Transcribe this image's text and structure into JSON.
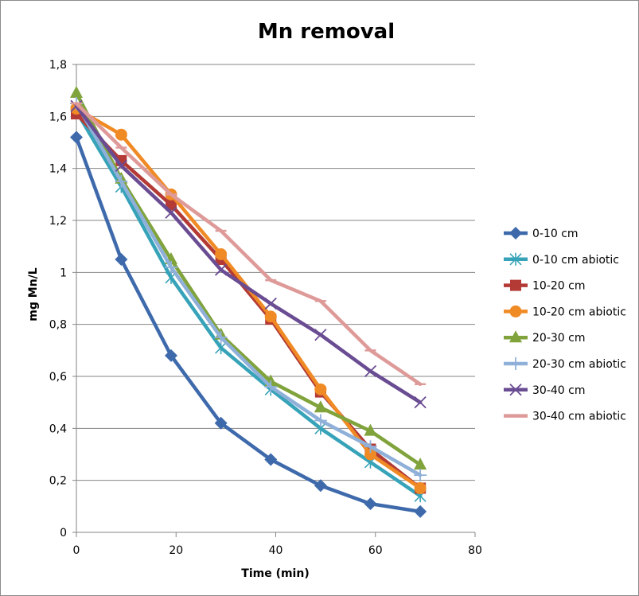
{
  "chart_data": {
    "type": "line",
    "title": "Mn removal",
    "xlabel": "Time (min)",
    "ylabel": "mg Mn/L",
    "xlim": [
      0,
      80
    ],
    "ylim": [
      0,
      1.8
    ],
    "x_ticks": [
      "0",
      "20",
      "40",
      "60",
      "80"
    ],
    "y_ticks": [
      "0",
      "0,2",
      "0,4",
      "0,6",
      "0,8",
      "1",
      "1,2",
      "1,4",
      "1,6",
      "1,8"
    ],
    "grid": "horizontal",
    "legend_position": "right",
    "x": [
      0,
      9,
      19,
      29,
      39,
      49,
      59,
      69
    ],
    "series": [
      {
        "name": "0-10 cm",
        "color": "#3e6aac",
        "marker": "diamond",
        "values": [
          1.52,
          1.05,
          0.68,
          0.42,
          0.28,
          0.18,
          0.11,
          0.08
        ]
      },
      {
        "name": "0-10 cm abiotic",
        "color": "#37a3b8",
        "marker": "asterisk",
        "values": [
          1.62,
          1.33,
          0.98,
          0.71,
          0.55,
          0.4,
          0.27,
          0.14
        ]
      },
      {
        "name": "10-20 cm",
        "color": "#b33a35",
        "marker": "square",
        "values": [
          1.61,
          1.43,
          1.26,
          1.05,
          0.82,
          0.54,
          0.32,
          0.17
        ]
      },
      {
        "name": "10-20 cm abiotic",
        "color": "#f08a25",
        "marker": "circle",
        "values": [
          1.63,
          1.53,
          1.3,
          1.07,
          0.83,
          0.55,
          0.3,
          0.17
        ]
      },
      {
        "name": "20-30 cm",
        "color": "#80a33c",
        "marker": "triangle",
        "values": [
          1.69,
          1.36,
          1.05,
          0.76,
          0.58,
          0.48,
          0.39,
          0.26
        ]
      },
      {
        "name": "20-30 cm abiotic",
        "color": "#8fb0d8",
        "marker": "plus",
        "values": [
          1.65,
          1.35,
          1.02,
          0.75,
          0.56,
          0.43,
          0.33,
          0.22
        ]
      },
      {
        "name": "30-40 cm",
        "color": "#6a4c93",
        "marker": "x",
        "values": [
          1.64,
          1.41,
          1.23,
          1.01,
          0.88,
          0.76,
          0.62,
          0.5
        ]
      },
      {
        "name": "30-40 cm abiotic",
        "color": "#de9a98",
        "marker": "dash",
        "values": [
          1.65,
          1.48,
          1.3,
          1.16,
          0.97,
          0.89,
          0.7,
          0.57
        ]
      }
    ]
  }
}
